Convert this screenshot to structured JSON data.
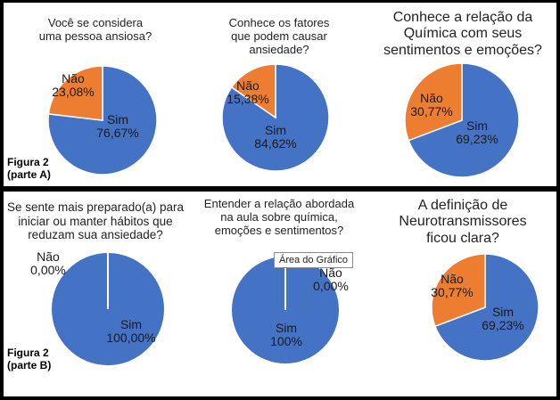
{
  "colors": {
    "sim": "#4472C4",
    "nao": "#ED7D31",
    "separator": "#ffffff"
  },
  "figure_labels": {
    "a_line1": "Figura 2",
    "a_line2": "(parte A)",
    "b_line1": "Figura 2",
    "b_line2": "(parte B)"
  },
  "tooltip": "Área do Gráfico",
  "chart_data": [
    {
      "type": "pie",
      "title": "Você se considera\numa pessoa ansiosa?",
      "categories": [
        "Sim",
        "Não"
      ],
      "values": [
        76.67,
        23.08
      ],
      "data_labels": [
        "76,67%",
        "23,08%"
      ]
    },
    {
      "type": "pie",
      "title": "Conhece os fatores\nque podem causar\nansiedade?",
      "categories": [
        "Sim",
        "Não"
      ],
      "values": [
        84.62,
        15.38
      ],
      "data_labels": [
        "84,62%",
        "15,38%"
      ]
    },
    {
      "type": "pie",
      "title": "Conhece a relação da\nQuímica com seus\nsentimentos e emoções?",
      "categories": [
        "Sim",
        "Não"
      ],
      "values": [
        69.23,
        30.77
      ],
      "data_labels": [
        "69,23%",
        "30,77%"
      ]
    },
    {
      "type": "pie",
      "title": "Se sente mais preparado(a) para\niniciar ou manter hábitos que\nreduzam sua ansiedade?",
      "categories": [
        "Sim",
        "Não"
      ],
      "values": [
        100.0,
        0.0
      ],
      "data_labels": [
        "100,00%",
        "0,00%"
      ]
    },
    {
      "type": "pie",
      "title": "Entender a relação abordada\nna aula sobre química,\nemoções e sentimentos?",
      "categories": [
        "Sim",
        "Não"
      ],
      "values": [
        100,
        0
      ],
      "data_labels": [
        "100%",
        "0,00%"
      ]
    },
    {
      "type": "pie",
      "title": "A  definição de\nNeurotransmissores\nficou clara?",
      "categories": [
        "Sim",
        "Não"
      ],
      "values": [
        69.23,
        30.77
      ],
      "data_labels": [
        "69,23%",
        "30,77%"
      ]
    }
  ]
}
